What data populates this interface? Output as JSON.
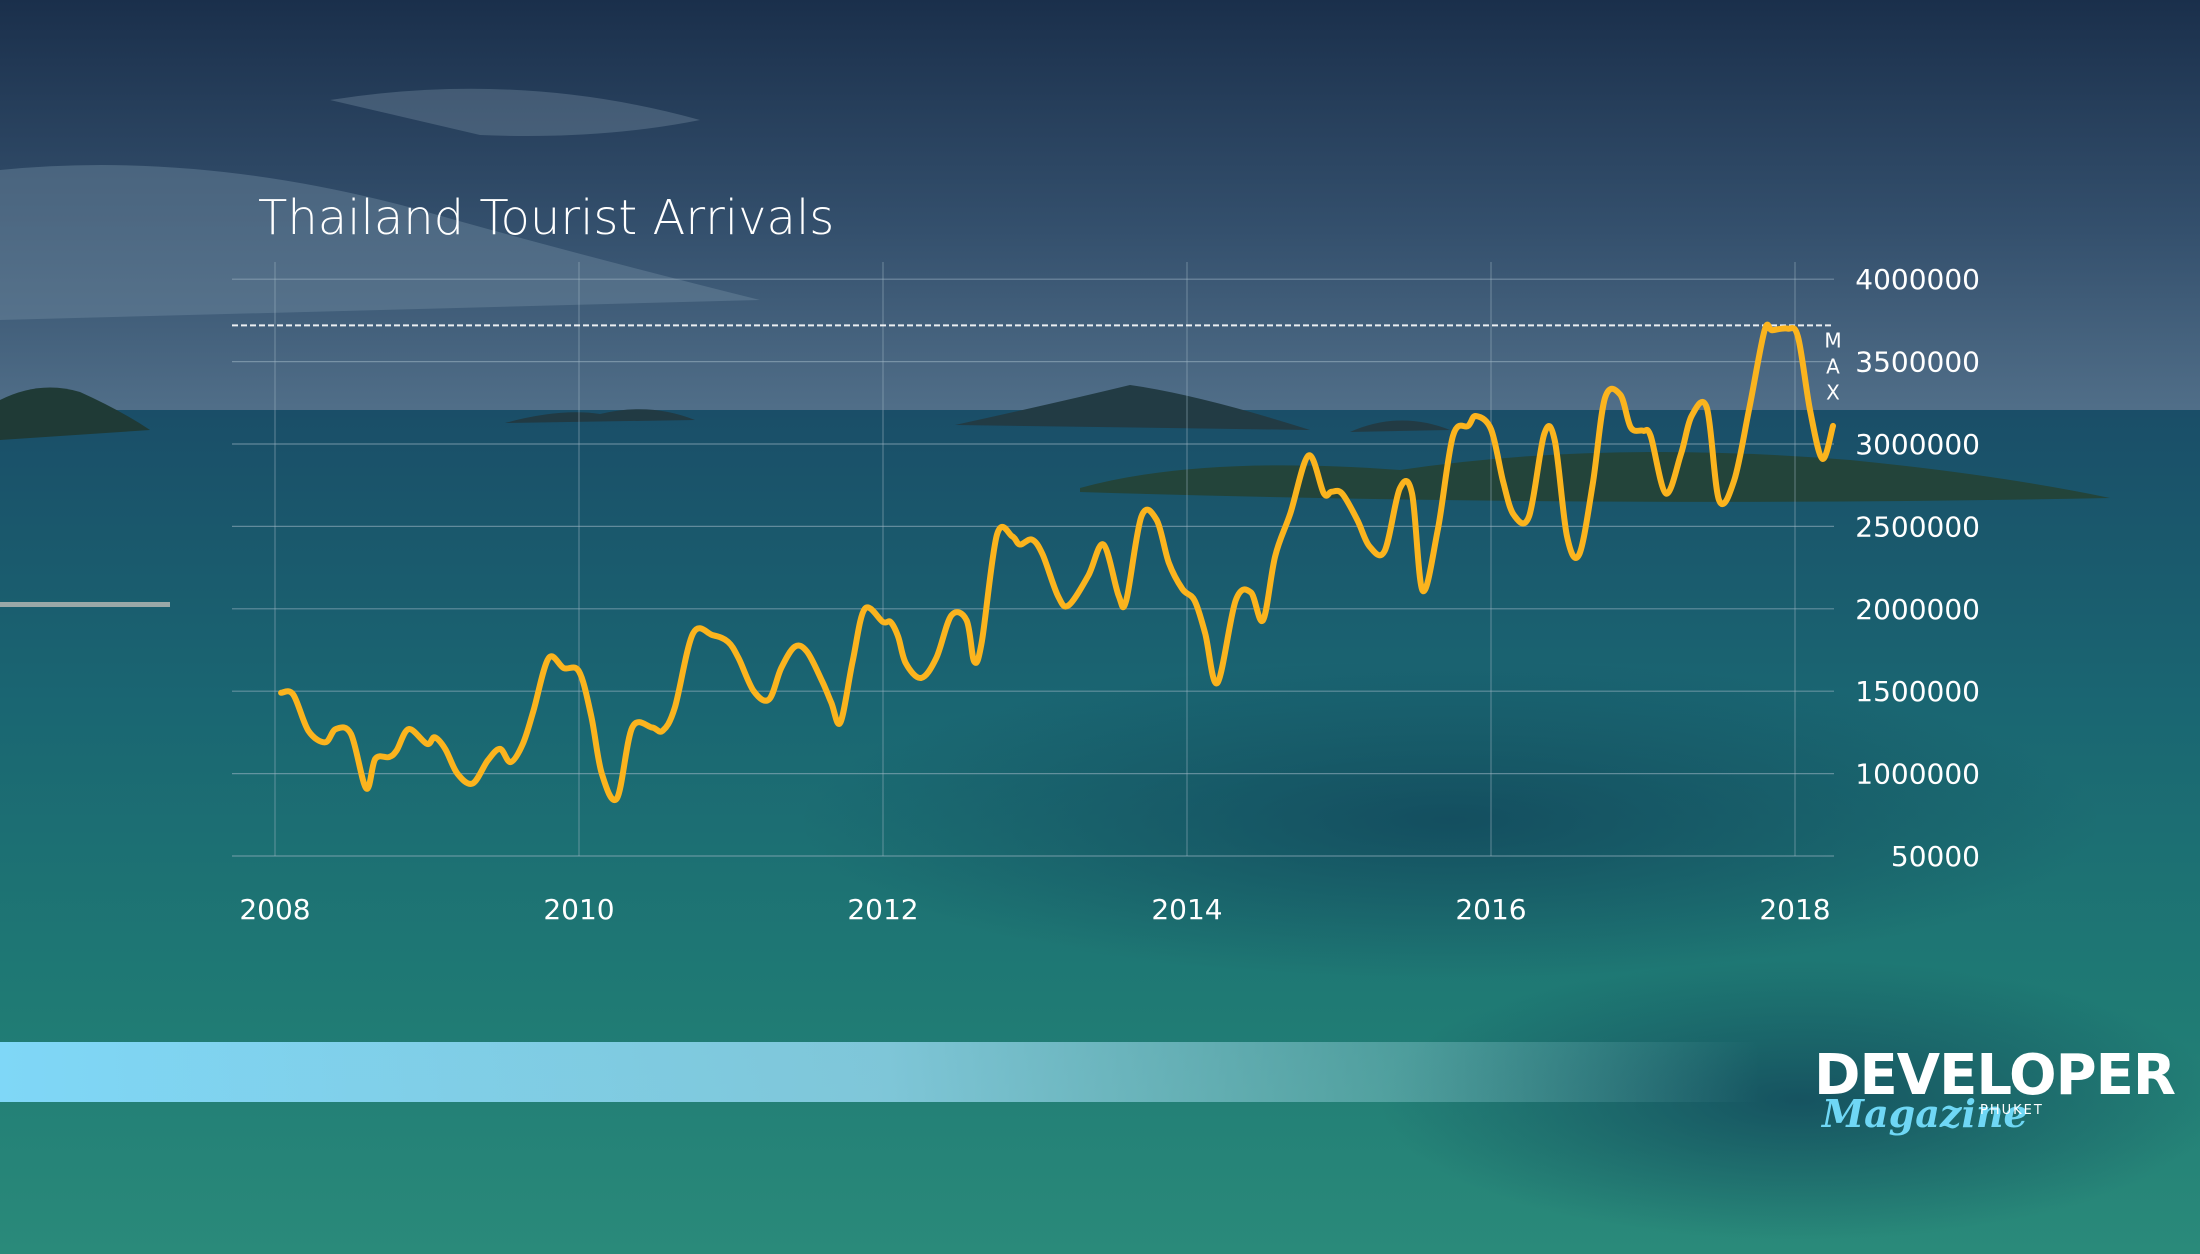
{
  "colors": {
    "line": "#fbb41e",
    "grid": "#9fb6c4",
    "text": "#ffffff",
    "accent_bar": "#7fd7f7",
    "logo_script": "#6fd7f5"
  },
  "logo": {
    "main": "DEVELOPER",
    "script": "Magazine",
    "small": "PHUKET"
  },
  "chart_data": {
    "type": "line",
    "title": "Thailand Tourist Arrivals",
    "xlabel": "",
    "ylabel": "",
    "x_ticks": [
      "2008",
      "2010",
      "2012",
      "2014",
      "2016",
      "2018"
    ],
    "y_ticks": [
      "50000",
      "1000000",
      "1500000",
      "2000000",
      "2500000",
      "3000000",
      "3500000",
      "4000000"
    ],
    "xlim": [
      2008,
      2018.25
    ],
    "ylim": [
      500000,
      4000000
    ],
    "grid": true,
    "max_marker": {
      "label": "MAX",
      "value": 3720000
    },
    "series": [
      {
        "x": [
          2008.04,
          2008.12,
          2008.22,
          2008.33,
          2008.4,
          2008.5,
          2008.6,
          2008.66,
          2008.75,
          2008.8,
          2008.88,
          2009.0,
          2009.05,
          2009.12,
          2009.2,
          2009.3,
          2009.4,
          2009.48,
          2009.55,
          2009.63,
          2009.7,
          2009.8,
          2009.9,
          2010.0,
          2010.08,
          2010.15,
          2010.25,
          2010.35,
          2010.48,
          2010.55,
          2010.63,
          2010.75,
          2010.88,
          2010.98,
          2011.05,
          2011.15,
          2011.25,
          2011.33,
          2011.42,
          2011.5,
          2011.6,
          2011.66,
          2011.72,
          2011.8,
          2011.88,
          2012.0,
          2012.05,
          2012.1,
          2012.15,
          2012.25,
          2012.35,
          2012.45,
          2012.55,
          2012.6,
          2012.65,
          2012.75,
          2012.85,
          2012.9,
          2012.98,
          2013.05,
          2013.15,
          2013.22,
          2013.35,
          2013.45,
          2013.55,
          2013.6,
          2013.7,
          2013.8,
          2013.88,
          2013.97,
          2014.05,
          2014.12,
          2014.2,
          2014.32,
          2014.42,
          2014.5,
          2014.58,
          2014.68,
          2014.8,
          2014.9,
          2014.95,
          2015.02,
          2015.12,
          2015.2,
          2015.3,
          2015.4,
          2015.48,
          2015.55,
          2015.65,
          2015.75,
          2015.85,
          2015.9,
          2016.0,
          2016.08,
          2016.15,
          2016.25,
          2016.35,
          2016.42,
          2016.5,
          2016.58,
          2016.67,
          2016.75,
          2016.85,
          2016.92,
          2017.0,
          2017.05,
          2017.15,
          2017.25,
          2017.32,
          2017.42,
          2017.5,
          2017.6,
          2017.7,
          2017.8,
          2017.85,
          2017.95,
          2018.02,
          2018.1,
          2018.18,
          2018.25
        ],
        "y": [
          1490000,
          1480000,
          1260000,
          1190000,
          1270000,
          1240000,
          910000,
          1090000,
          1100000,
          1140000,
          1270000,
          1180000,
          1220000,
          1150000,
          1000000,
          940000,
          1080000,
          1150000,
          1070000,
          1180000,
          1380000,
          1700000,
          1640000,
          1620000,
          1350000,
          1000000,
          850000,
          1280000,
          1280000,
          1260000,
          1400000,
          1850000,
          1840000,
          1800000,
          1700000,
          1500000,
          1450000,
          1640000,
          1770000,
          1740000,
          1560000,
          1430000,
          1310000,
          1680000,
          2000000,
          1920000,
          1920000,
          1830000,
          1670000,
          1580000,
          1700000,
          1960000,
          1930000,
          1680000,
          1800000,
          2450000,
          2440000,
          2390000,
          2420000,
          2330000,
          2080000,
          2020000,
          2200000,
          2390000,
          2080000,
          2050000,
          2560000,
          2540000,
          2280000,
          2120000,
          2050000,
          1850000,
          1550000,
          2050000,
          2100000,
          1930000,
          2320000,
          2580000,
          2930000,
          2700000,
          2710000,
          2700000,
          2540000,
          2380000,
          2350000,
          2730000,
          2700000,
          2110000,
          2480000,
          3050000,
          3110000,
          3170000,
          3090000,
          2770000,
          2570000,
          2560000,
          3060000,
          3020000,
          2440000,
          2330000,
          2760000,
          3280000,
          3300000,
          3100000,
          3080000,
          3050000,
          2700000,
          2940000,
          3170000,
          3220000,
          2660000,
          2780000,
          3220000,
          3690000,
          3690000,
          3700000,
          3650000,
          3200000,
          2910000,
          3110000
        ]
      }
    ]
  }
}
